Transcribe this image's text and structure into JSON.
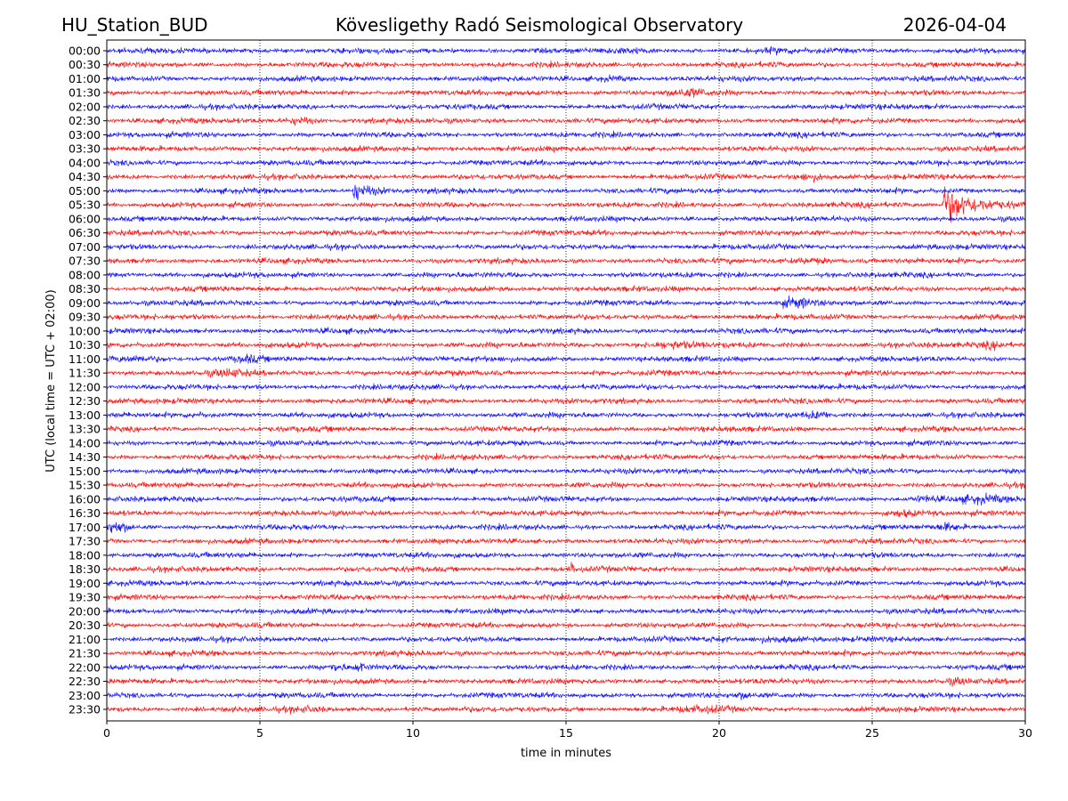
{
  "header": {
    "station": "HU_Station_BUD",
    "title": "Kövesligethy Radó Seismological Observatory",
    "date": "2026-04-04"
  },
  "chart_data": {
    "type": "line",
    "title": "Kövesligethy Radó Seismological Observatory",
    "xlabel": "time in minutes",
    "ylabel": "UTC (local time = UTC + 02:00)",
    "xlim": [
      0,
      30
    ],
    "xticks": [
      "0",
      "5",
      "10",
      "15",
      "20",
      "25",
      "30"
    ],
    "grid": "vertical dotted at x ticks",
    "colors": [
      "#0000ff",
      "#ff0000"
    ],
    "rows": [
      "00:00",
      "00:30",
      "01:00",
      "01:30",
      "02:00",
      "02:30",
      "03:00",
      "03:30",
      "04:00",
      "04:30",
      "05:00",
      "05:30",
      "06:00",
      "06:30",
      "07:00",
      "07:30",
      "08:00",
      "08:30",
      "09:00",
      "09:30",
      "10:00",
      "10:30",
      "11:00",
      "11:30",
      "12:00",
      "12:30",
      "13:00",
      "13:30",
      "14:00",
      "14:30",
      "15:00",
      "15:30",
      "16:00",
      "16:30",
      "17:00",
      "17:30",
      "18:00",
      "18:30",
      "19:00",
      "19:30",
      "20:00",
      "20:30",
      "21:00",
      "21:30",
      "22:00",
      "22:30",
      "23:00",
      "23:30"
    ],
    "events": [
      {
        "row": "00:00",
        "minute": 17,
        "amp": 1.6,
        "dur": 1.2
      },
      {
        "row": "00:00",
        "minute": 22,
        "amp": 1.6,
        "dur": 0.8
      },
      {
        "row": "01:00",
        "minute": 16.5,
        "amp": 1.7,
        "dur": 1.0
      },
      {
        "row": "01:30",
        "minute": 19,
        "amp": 2.0,
        "dur": 1.2
      },
      {
        "row": "02:30",
        "minute": 6.3,
        "amp": 2.2,
        "dur": 0.8
      },
      {
        "row": "04:30",
        "minute": 23,
        "amp": 2.2,
        "dur": 1.0
      },
      {
        "row": "05:00",
        "minute": 8.0,
        "amp": 4.5,
        "dur": 1.5,
        "quake": true
      },
      {
        "row": "05:30",
        "minute": 27.3,
        "amp": 8,
        "dur": 2.7,
        "quake": true
      },
      {
        "row": "07:30",
        "minute": 23,
        "amp": 1.8,
        "dur": 1.2
      },
      {
        "row": "09:00",
        "minute": 22.5,
        "amp": 2.6,
        "dur": 0.9
      },
      {
        "row": "10:30",
        "minute": 18.4,
        "amp": 2.0,
        "dur": 1.5
      },
      {
        "row": "10:30",
        "minute": 29,
        "amp": 2.0,
        "dur": 0.8
      },
      {
        "row": "11:00",
        "minute": 1,
        "amp": 2.0,
        "dur": 1.5
      },
      {
        "row": "11:00",
        "minute": 4.6,
        "amp": 2.0,
        "dur": 0.7
      },
      {
        "row": "11:30",
        "minute": 4,
        "amp": 2.0,
        "dur": 1.0
      },
      {
        "row": "13:00",
        "minute": 3,
        "amp": 1.6,
        "dur": 0.8
      },
      {
        "row": "13:00",
        "minute": 23.2,
        "amp": 2.0,
        "dur": 0.8
      },
      {
        "row": "16:00",
        "minute": 26.7,
        "amp": 2.0,
        "dur": 0.8
      },
      {
        "row": "16:00",
        "minute": 28.5,
        "amp": 2.0,
        "dur": 1.5
      },
      {
        "row": "16:30",
        "minute": 26,
        "amp": 2.0,
        "dur": 0.8
      },
      {
        "row": "17:00",
        "minute": 0.3,
        "amp": 2.8,
        "dur": 0.8
      },
      {
        "row": "17:00",
        "minute": 27.5,
        "amp": 2.0,
        "dur": 0.6
      },
      {
        "row": "18:30",
        "minute": 15.2,
        "amp": 3.0,
        "dur": 0.15
      },
      {
        "row": "21:00",
        "minute": 20,
        "amp": 1.6,
        "dur": 0.8
      },
      {
        "row": "21:00",
        "minute": 21.8,
        "amp": 2.0,
        "dur": 1.3
      },
      {
        "row": "22:00",
        "minute": 7.5,
        "amp": 2.0,
        "dur": 0.5
      },
      {
        "row": "22:00",
        "minute": 8.3,
        "amp": 2.4,
        "dur": 0.3
      },
      {
        "row": "22:30",
        "minute": 27.8,
        "amp": 1.8,
        "dur": 0.6
      },
      {
        "row": "23:00",
        "minute": 20.8,
        "amp": 1.8,
        "dur": 0.4
      },
      {
        "row": "23:30",
        "minute": 19.5,
        "amp": 1.8,
        "dur": 1.5
      },
      {
        "row": "23:30",
        "minute": 6.5,
        "amp": 1.6,
        "dur": 1.0
      }
    ]
  }
}
